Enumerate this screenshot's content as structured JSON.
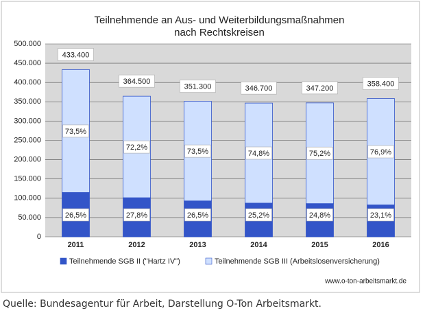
{
  "chart_data": {
    "type": "stacked-bar",
    "title": "Teilnehmende an Aus- und Weiterbildungsmaßnahmen",
    "subtitle": "nach Rechtskreisen",
    "categories": [
      "2011",
      "2012",
      "2013",
      "2014",
      "2015",
      "2016"
    ],
    "series": [
      {
        "name": "Teilnehmende SGB II (\"Hartz IV\")",
        "color": "#3355c8",
        "values": [
          114851,
          101331,
          93095,
          87368,
          86106,
          82790
        ],
        "share_labels": [
          "26,5%",
          "27,8%",
          "26,5%",
          "25,2%",
          "24,8%",
          "23,1%"
        ]
      },
      {
        "name": "Teilnehmende SGB III (Arbeitslosenversicherung)",
        "color": "#cfe0ff",
        "values": [
          318549,
          263169,
          258205,
          259332,
          261094,
          275610
        ],
        "share_labels": [
          "73,5%",
          "72,2%",
          "73,5%",
          "74,8%",
          "75,2%",
          "76,9%"
        ]
      }
    ],
    "totals": [
      {
        "value": 433400,
        "label": "433.400"
      },
      {
        "value": 364500,
        "label": "364.500"
      },
      {
        "value": 351300,
        "label": "351.300"
      },
      {
        "value": 346700,
        "label": "346.700"
      },
      {
        "value": 347200,
        "label": "347.200"
      },
      {
        "value": 358400,
        "label": "358.400"
      }
    ],
    "ylim": [
      0,
      500000
    ],
    "yticks": [
      0,
      {
        "value": 50000,
        "label": "50.000"
      },
      {
        "value": 100000,
        "label": "100.000"
      },
      {
        "value": 150000,
        "label": "150.000"
      },
      {
        "value": 200000,
        "label": "200.000"
      },
      {
        "value": 250000,
        "label": "250.000"
      },
      {
        "value": 300000,
        "label": "300.000"
      },
      {
        "value": 350000,
        "label": "350.000"
      },
      {
        "value": 400000,
        "label": "400.000"
      },
      {
        "value": 450000,
        "label": "450.000"
      },
      {
        "value": 500000,
        "label": "500.000"
      }
    ],
    "grid": true,
    "source": "www.o-ton-arbeitsmarkt.de"
  },
  "caption": "Quelle: Bundesagentur für Arbeit, Darstellung O-Ton Arbeitsmarkt."
}
